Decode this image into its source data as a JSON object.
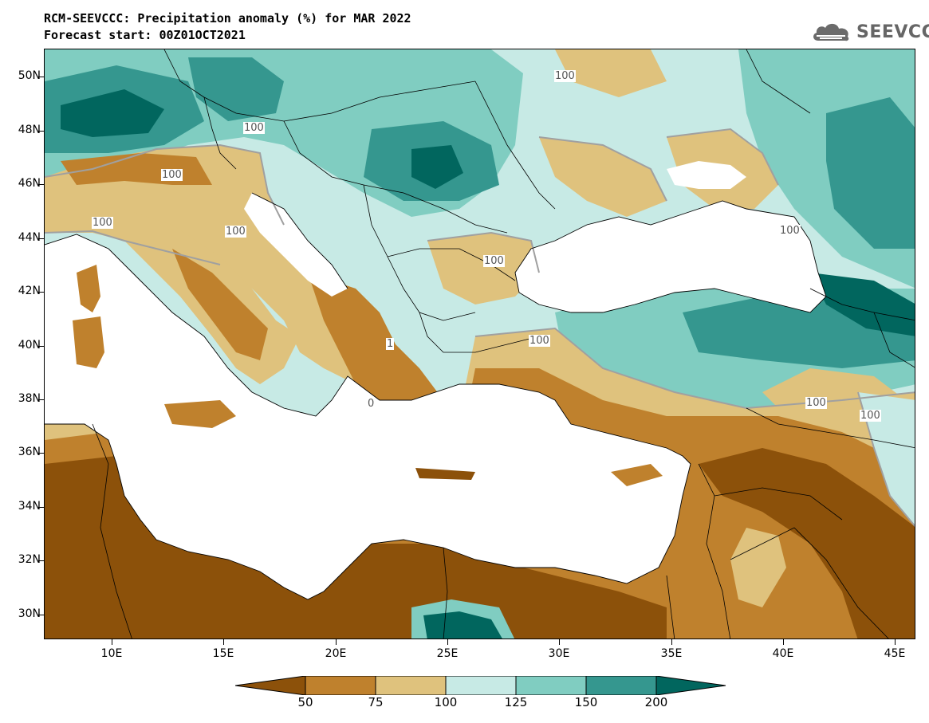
{
  "header": {
    "title_line1": "RCM-SEEVCCC: Precipitation anomaly (%) for MAR 2022",
    "title_line2": "Forecast start: 00Z01OCT2021",
    "logo_text": "SEEVCCC",
    "logo_icon": "cloud-icon"
  },
  "map": {
    "variable": "Precipitation anomaly (%)",
    "lat_labels": [
      "50N",
      "48N",
      "46N",
      "44N",
      "42N",
      "40N",
      "38N",
      "36N",
      "34N",
      "32N",
      "30N"
    ],
    "lon_labels": [
      "10E",
      "15E",
      "20E",
      "25E",
      "30E",
      "35E",
      "40E",
      "45E"
    ],
    "contour_labels": [
      "100",
      "100",
      "100",
      "100",
      "100",
      "100",
      "100",
      "100",
      "100",
      "100",
      "1",
      "0"
    ],
    "colors": {
      "sea": "#ffffff",
      "below_50": "#8c510a",
      "50_75": "#bf812d",
      "75_100": "#dfc27d",
      "100_125": "#c7eae5",
      "125_150": "#80cdc1",
      "150_200": "#35978f",
      "above_200": "#01665e",
      "contour_line": "#a0a0a0",
      "border_line": "#000000"
    }
  },
  "colorbar": {
    "tick_labels": [
      "50",
      "75",
      "100",
      "125",
      "150",
      "200"
    ],
    "colors": [
      "#8c510a",
      "#bf812d",
      "#dfc27d",
      "#c7eae5",
      "#80cdc1",
      "#35978f",
      "#01665e"
    ]
  }
}
